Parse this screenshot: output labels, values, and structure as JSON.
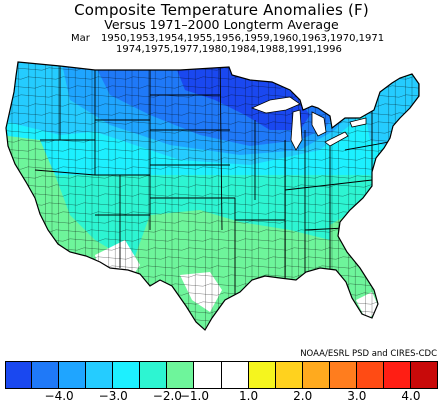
{
  "title": "Composite Temperature Anomalies (F)",
  "subtitle": "Versus 1971–2000 Longterm Average",
  "month": "Mar",
  "years_line1": "1950,1953,1954,1955,1956,1959,1960,1963,1970,1971",
  "years_line2": "1974,1975,1977,1980,1984,1988,1991,1996",
  "credit": "NOAA/ESRL PSD and CIRES-CDC",
  "legend": {
    "colors": [
      "#1a48f0",
      "#1f79f8",
      "#1fa5ff",
      "#25ccff",
      "#1df0ff",
      "#2df5d2",
      "#6ef59b",
      "#ffffff",
      "#ffffff",
      "#f5f51e",
      "#ffd21e",
      "#ffaa1e",
      "#ff7d1e",
      "#ff4b14",
      "#ff1e14",
      "#c80a0a"
    ],
    "ticks": [
      "−4.0",
      "−3.0",
      "−2.0",
      "−1.0",
      "1.0",
      "2.0",
      "3.0",
      "4.0"
    ]
  },
  "map": {
    "colors": {
      "deep_blue": "#1a48f0",
      "blue": "#1f79f8",
      "med_blue": "#1fa5ff",
      "light_blue": "#25ccff",
      "cyan": "#1df0ff",
      "aqua": "#2df5d2",
      "light_green": "#6ef59b",
      "white": "#ffffff",
      "outline": "#000000"
    }
  }
}
